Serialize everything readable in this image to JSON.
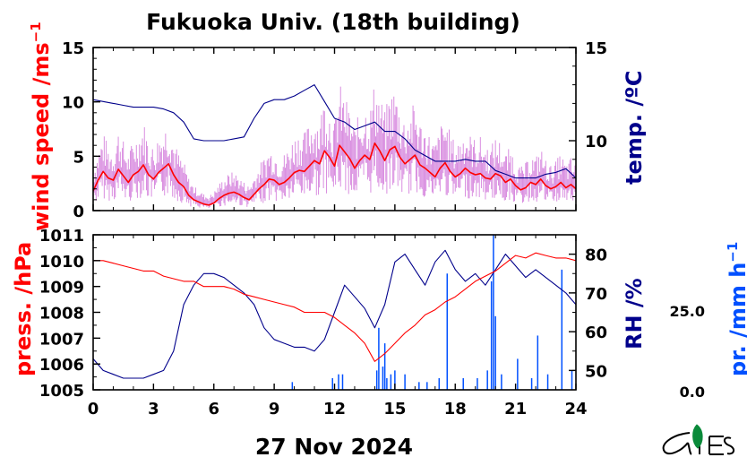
{
  "title": "Fukuoka Univ. (18th building)",
  "date_label": "27 Nov 2024",
  "colors": {
    "wind": "#ff0000",
    "wind_raw": "#d98ee0",
    "temp": "#00008b",
    "press": "#ff0000",
    "rh": "#00008b",
    "precip": "#0050ff"
  },
  "chart_data": [
    {
      "type": "line",
      "panel": "upper",
      "x_ticks": [
        "0",
        "3",
        "6",
        "9",
        "12",
        "15",
        "18",
        "21",
        "24"
      ],
      "xlim": [
        0,
        24
      ],
      "left_axis": {
        "label": "wind speed /ms",
        "label_sup": "−1",
        "ylim": [
          0,
          15
        ],
        "ticks": [
          "0",
          "5",
          "10",
          "15"
        ]
      },
      "right_axis": {
        "label": "temp. /ºC",
        "ylim": [
          6.25,
          15.0
        ],
        "ticks": [
          "10",
          "15"
        ]
      },
      "series": [
        {
          "axis": "left",
          "x": [
            0,
            0.25,
            0.5,
            0.75,
            1,
            1.25,
            1.5,
            1.75,
            2,
            2.25,
            2.5,
            2.75,
            3,
            3.25,
            3.5,
            3.75,
            4,
            4.25,
            4.5,
            4.75,
            5,
            5.25,
            5.5,
            5.75,
            6,
            6.25,
            6.5,
            6.75,
            7,
            7.25,
            7.5,
            7.75,
            8,
            8.25,
            8.5,
            8.75,
            9,
            9.25,
            9.5,
            9.75,
            10,
            10.25,
            10.5,
            10.75,
            11,
            11.25,
            11.5,
            11.75,
            12,
            12.25,
            12.5,
            12.75,
            13,
            13.25,
            13.5,
            13.75,
            14,
            14.25,
            14.5,
            14.75,
            15,
            15.25,
            15.5,
            15.75,
            16,
            16.25,
            16.5,
            16.75,
            17,
            17.25,
            17.5,
            17.75,
            18,
            18.25,
            18.5,
            18.75,
            19,
            19.25,
            19.5,
            19.75,
            20,
            20.25,
            20.5,
            20.75,
            21,
            21.25,
            21.5,
            21.75,
            22,
            22.25,
            22.5,
            22.75,
            23,
            23.25,
            23.5,
            23.75,
            24
          ],
          "values": [
            1.8,
            2.8,
            3.6,
            3.0,
            2.8,
            3.8,
            3.2,
            2.6,
            3.3,
            3.6,
            4.2,
            3.3,
            2.9,
            3.5,
            3.9,
            4.3,
            3.3,
            2.6,
            2.2,
            1.4,
            1.0,
            0.8,
            0.6,
            0.5,
            0.7,
            1.1,
            1.4,
            1.6,
            1.7,
            1.5,
            1.2,
            1.0,
            1.5,
            2.0,
            2.4,
            2.9,
            2.8,
            2.4,
            2.6,
            3.0,
            3.5,
            3.7,
            3.6,
            4.1,
            4.6,
            4.3,
            5.5,
            4.9,
            4.1,
            6.0,
            5.4,
            4.8,
            3.9,
            4.6,
            5.1,
            4.7,
            6.2,
            5.5,
            4.6,
            5.6,
            5.9,
            4.9,
            4.3,
            4.7,
            5.1,
            4.2,
            3.9,
            3.5,
            3.1,
            3.9,
            4.4,
            3.6,
            3.1,
            3.4,
            3.9,
            3.5,
            3.3,
            3.4,
            3.0,
            2.9,
            3.4,
            3.2,
            2.6,
            2.9,
            2.3,
            1.9,
            2.1,
            2.6,
            2.4,
            2.9,
            2.3,
            2.0,
            2.2,
            2.6,
            2.1,
            2.4,
            2.0
          ]
        },
        {
          "axis": "right",
          "x": [
            0,
            0.5,
            1,
            1.5,
            2,
            2.5,
            3,
            3.5,
            4,
            4.5,
            5,
            5.5,
            6,
            6.5,
            7,
            7.5,
            8,
            8.5,
            9,
            9.5,
            10,
            10.5,
            11,
            11.5,
            12,
            12.5,
            13,
            13.5,
            14,
            14.5,
            15,
            15.5,
            16,
            16.5,
            17,
            17.5,
            18,
            18.5,
            19,
            19.5,
            20,
            20.5,
            21,
            21.5,
            22,
            22.5,
            23,
            23.5,
            24
          ],
          "values": [
            12.2,
            12.1,
            12.0,
            11.9,
            11.8,
            11.8,
            11.8,
            11.7,
            11.5,
            11.0,
            10.1,
            10.0,
            10.0,
            10.0,
            10.1,
            10.2,
            11.2,
            12.0,
            12.2,
            12.2,
            12.4,
            12.7,
            13.0,
            12.1,
            11.2,
            11.0,
            10.6,
            10.8,
            11.0,
            10.5,
            10.5,
            10.1,
            9.5,
            9.2,
            8.9,
            8.9,
            8.9,
            9.0,
            8.9,
            8.9,
            8.4,
            8.2,
            8.0,
            8.0,
            8.0,
            8.2,
            8.3,
            8.5,
            8.0
          ]
        }
      ]
    },
    {
      "type": "line",
      "panel": "lower",
      "x_ticks": [
        "0",
        "3",
        "6",
        "9",
        "12",
        "15",
        "18",
        "21",
        "24"
      ],
      "xlim": [
        0,
        24
      ],
      "left_axis": {
        "label": "press. /hPa",
        "ylim": [
          1005,
          1011
        ],
        "ticks": [
          "1005",
          "1006",
          "1007",
          "1008",
          "1009",
          "1010",
          "1011"
        ]
      },
      "right_axis": {
        "label": "RH /%",
        "ylim": [
          45,
          85
        ],
        "ticks": [
          "50",
          "60",
          "70",
          "80"
        ]
      },
      "precip_axis": {
        "label": "pr. /mm h",
        "label_sup": "−1",
        "ticks": [
          "0.0",
          "25.0"
        ],
        "ylim": [
          0,
          40
        ]
      },
      "series": [
        {
          "axis": "left",
          "x": [
            0,
            0.5,
            1,
            1.5,
            2,
            2.5,
            3,
            3.5,
            4,
            4.5,
            5,
            5.5,
            6,
            6.5,
            7,
            7.5,
            8,
            8.5,
            9,
            9.5,
            10,
            10.5,
            11,
            11.5,
            12,
            12.5,
            13,
            13.5,
            14,
            14.5,
            15,
            15.5,
            16,
            16.5,
            17,
            17.5,
            18,
            18.5,
            19,
            19.5,
            20,
            20.5,
            21,
            21.5,
            22,
            22.5,
            23,
            23.5,
            24
          ],
          "values": [
            1010.0,
            1010.0,
            1009.9,
            1009.8,
            1009.7,
            1009.6,
            1009.6,
            1009.4,
            1009.3,
            1009.2,
            1009.2,
            1009.0,
            1009.0,
            1009.0,
            1008.9,
            1008.7,
            1008.6,
            1008.5,
            1008.4,
            1008.3,
            1008.2,
            1008.0,
            1008.0,
            1008.0,
            1007.8,
            1007.5,
            1007.2,
            1006.8,
            1006.1,
            1006.4,
            1006.8,
            1007.2,
            1007.5,
            1007.9,
            1008.1,
            1008.4,
            1008.6,
            1008.9,
            1009.2,
            1009.4,
            1009.6,
            1009.9,
            1010.2,
            1010.1,
            1010.3,
            1010.2,
            1010.1,
            1010.1,
            1010.0
          ]
        },
        {
          "axis": "right",
          "x": [
            0,
            0.5,
            1,
            1.5,
            2,
            2.5,
            3,
            3.5,
            4,
            4.5,
            5,
            5.5,
            6,
            6.5,
            7,
            7.5,
            8,
            8.5,
            9,
            9.5,
            10,
            10.5,
            11,
            11.5,
            12,
            12.5,
            13,
            13.5,
            14,
            14.5,
            15,
            15.5,
            16,
            16.5,
            17,
            17.5,
            18,
            18.5,
            19,
            19.5,
            20,
            20.5,
            21,
            21.5,
            22,
            22.5,
            23,
            23.5,
            24
          ],
          "values": [
            53,
            50,
            49,
            48,
            48,
            48,
            49,
            50,
            55,
            67,
            72,
            75,
            75,
            74,
            72,
            70,
            67,
            61,
            58,
            57,
            56,
            56,
            55,
            58,
            65,
            72,
            69,
            66,
            61,
            67,
            78,
            80,
            76,
            72,
            78,
            81,
            76,
            73,
            75,
            72,
            76,
            80,
            77,
            74,
            76,
            74,
            72,
            70,
            67
          ]
        }
      ],
      "precip": {
        "x": [
          9.9,
          11.9,
          12.2,
          12.4,
          14.1,
          14.2,
          14.4,
          14.5,
          14.6,
          14.8,
          15.0,
          15.5,
          16.2,
          16.6,
          17.2,
          17.6,
          18.4,
          19.1,
          19.6,
          19.8,
          19.9,
          20.0,
          20.3,
          21.1,
          21.8,
          22.1,
          22.6,
          23.3,
          23.8
        ],
        "values": [
          2,
          3,
          4,
          4,
          5,
          16,
          6,
          12,
          3,
          4,
          5,
          4,
          2,
          2,
          3,
          30,
          3,
          3,
          5,
          28,
          40,
          19,
          4,
          8,
          3,
          14,
          4,
          31,
          5
        ]
      }
    }
  ]
}
